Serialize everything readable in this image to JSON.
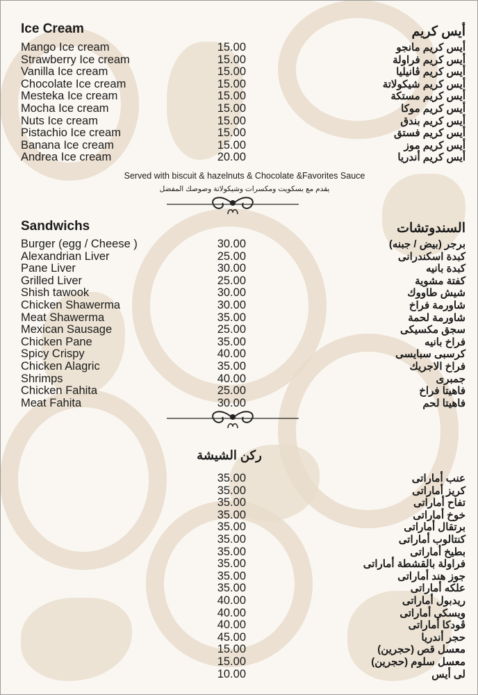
{
  "colors": {
    "background": "#faf7f2",
    "pattern": "#e8dccb",
    "text": "#1b1b1b"
  },
  "ice_cream": {
    "title_en": "Ice Cream",
    "title_ar": "أيس كريم",
    "items": [
      {
        "en": "Mango Ice cream",
        "price": "15.00",
        "ar": "أيس كريم مانجو"
      },
      {
        "en": "Strawberry Ice cream",
        "price": "15.00",
        "ar": "أيس كريم فراولة"
      },
      {
        "en": "Vanilla Ice cream",
        "price": "15.00",
        "ar": "أيس كريم ڤانيليا"
      },
      {
        "en": "Chocolate Ice cream",
        "price": "15.00",
        "ar": "أيس كريم شيكولاتة"
      },
      {
        "en": "Mesteka Ice cream",
        "price": "15.00",
        "ar": "أيس كريم مستكة"
      },
      {
        "en": "Mocha Ice cream",
        "price": "15.00",
        "ar": "أيس كريم موكا"
      },
      {
        "en": "Nuts Ice cream",
        "price": "15.00",
        "ar": "أيس كريم بندق"
      },
      {
        "en": "Pistachio Ice cream",
        "price": "15.00",
        "ar": "أيس كريم فستق"
      },
      {
        "en": "Banana Ice cream",
        "price": "15.00",
        "ar": "أيس كريم موز"
      },
      {
        "en": "Andrea Ice cream",
        "price": "20.00",
        "ar": "أيس كريم أندريا"
      }
    ],
    "note_en": "Served with biscuit & hazelnuts & Chocolate &Favorites Sauce",
    "note_ar": "يقدم مع بسكويت ومكسرات وشيكولاتة وصوصك المفضل"
  },
  "sandwiches": {
    "title_en": "Sandwichs",
    "title_ar": "السندوتشات",
    "items": [
      {
        "en": "Burger (egg / Cheese )",
        "price": "30.00",
        "ar": "برجر (بيض / جبنه)"
      },
      {
        "en": "Alexandrian Liver",
        "price": "25.00",
        "ar": "كبدة اسكندرانى"
      },
      {
        "en": "Pane Liver",
        "price": "30.00",
        "ar": "كبدة بانيه"
      },
      {
        "en": "Grilled Liver",
        "price": "25.00",
        "ar": "كفتة مشوية"
      },
      {
        "en": "Shish tawook",
        "price": "30.00",
        "ar": "شيش طاووك"
      },
      {
        "en": "Chicken Shawerma",
        "price": "30.00",
        "ar": "شاورمة فراخ"
      },
      {
        "en": "Meat Shawerma",
        "price": "35.00",
        "ar": "شاورمة لحمة"
      },
      {
        "en": "Mexican Sausage",
        "price": "25.00",
        "ar": "سجق مكسيكى"
      },
      {
        "en": "Chicken Pane",
        "price": "35.00",
        "ar": "فراخ بانيه"
      },
      {
        "en": "Spicy Crispy",
        "price": "40.00",
        "ar": "كرسبى سبايسى"
      },
      {
        "en": "Chicken Alagric",
        "price": "35.00",
        "ar": "فراخ الاجريك"
      },
      {
        "en": "Shrimps",
        "price": "40.00",
        "ar": "جمبرى"
      },
      {
        "en": "Chicken Fahita",
        "price": "25.00",
        "ar": "فاهيتا فراخ"
      },
      {
        "en": "Meat Fahita",
        "price": "30.00",
        "ar": "فاهيتا لحم"
      }
    ]
  },
  "shisha": {
    "title_ar": "ركن الشيشة",
    "items": [
      {
        "price": "35.00",
        "ar": "عنب أماراتى"
      },
      {
        "price": "35.00",
        "ar": "كريز أماراتى"
      },
      {
        "price": "35.00",
        "ar": "تفاح أماراتى"
      },
      {
        "price": "35.00",
        "ar": "خوخ أماراتى"
      },
      {
        "price": "35.00",
        "ar": "برتقال أماراتى"
      },
      {
        "price": "35.00",
        "ar": "كنتالوب أماراتى"
      },
      {
        "price": "35.00",
        "ar": "بطيخ أماراتى"
      },
      {
        "price": "35.00",
        "ar": "فراولة بالقشطة أماراتى"
      },
      {
        "price": "35.00",
        "ar": "جوز هند أماراتى"
      },
      {
        "price": "35.00",
        "ar": "علكه أماراتى"
      },
      {
        "price": "40.00",
        "ar": "ريدبول أماراتى"
      },
      {
        "price": "40.00",
        "ar": "ويسكى أماراتى"
      },
      {
        "price": "40.00",
        "ar": "ڤودكا أماراتى"
      },
      {
        "price": "45.00",
        "ar": "حجر أندريا"
      },
      {
        "price": "15.00",
        "ar": "معسل قص (حجرين)"
      },
      {
        "price": "15.00",
        "ar": "معسل سلوم (حجرين)"
      },
      {
        "price": "10.00",
        "ar": "لى أيس"
      }
    ]
  },
  "icons": {
    "divider": "ornamental-scroll-divider"
  }
}
